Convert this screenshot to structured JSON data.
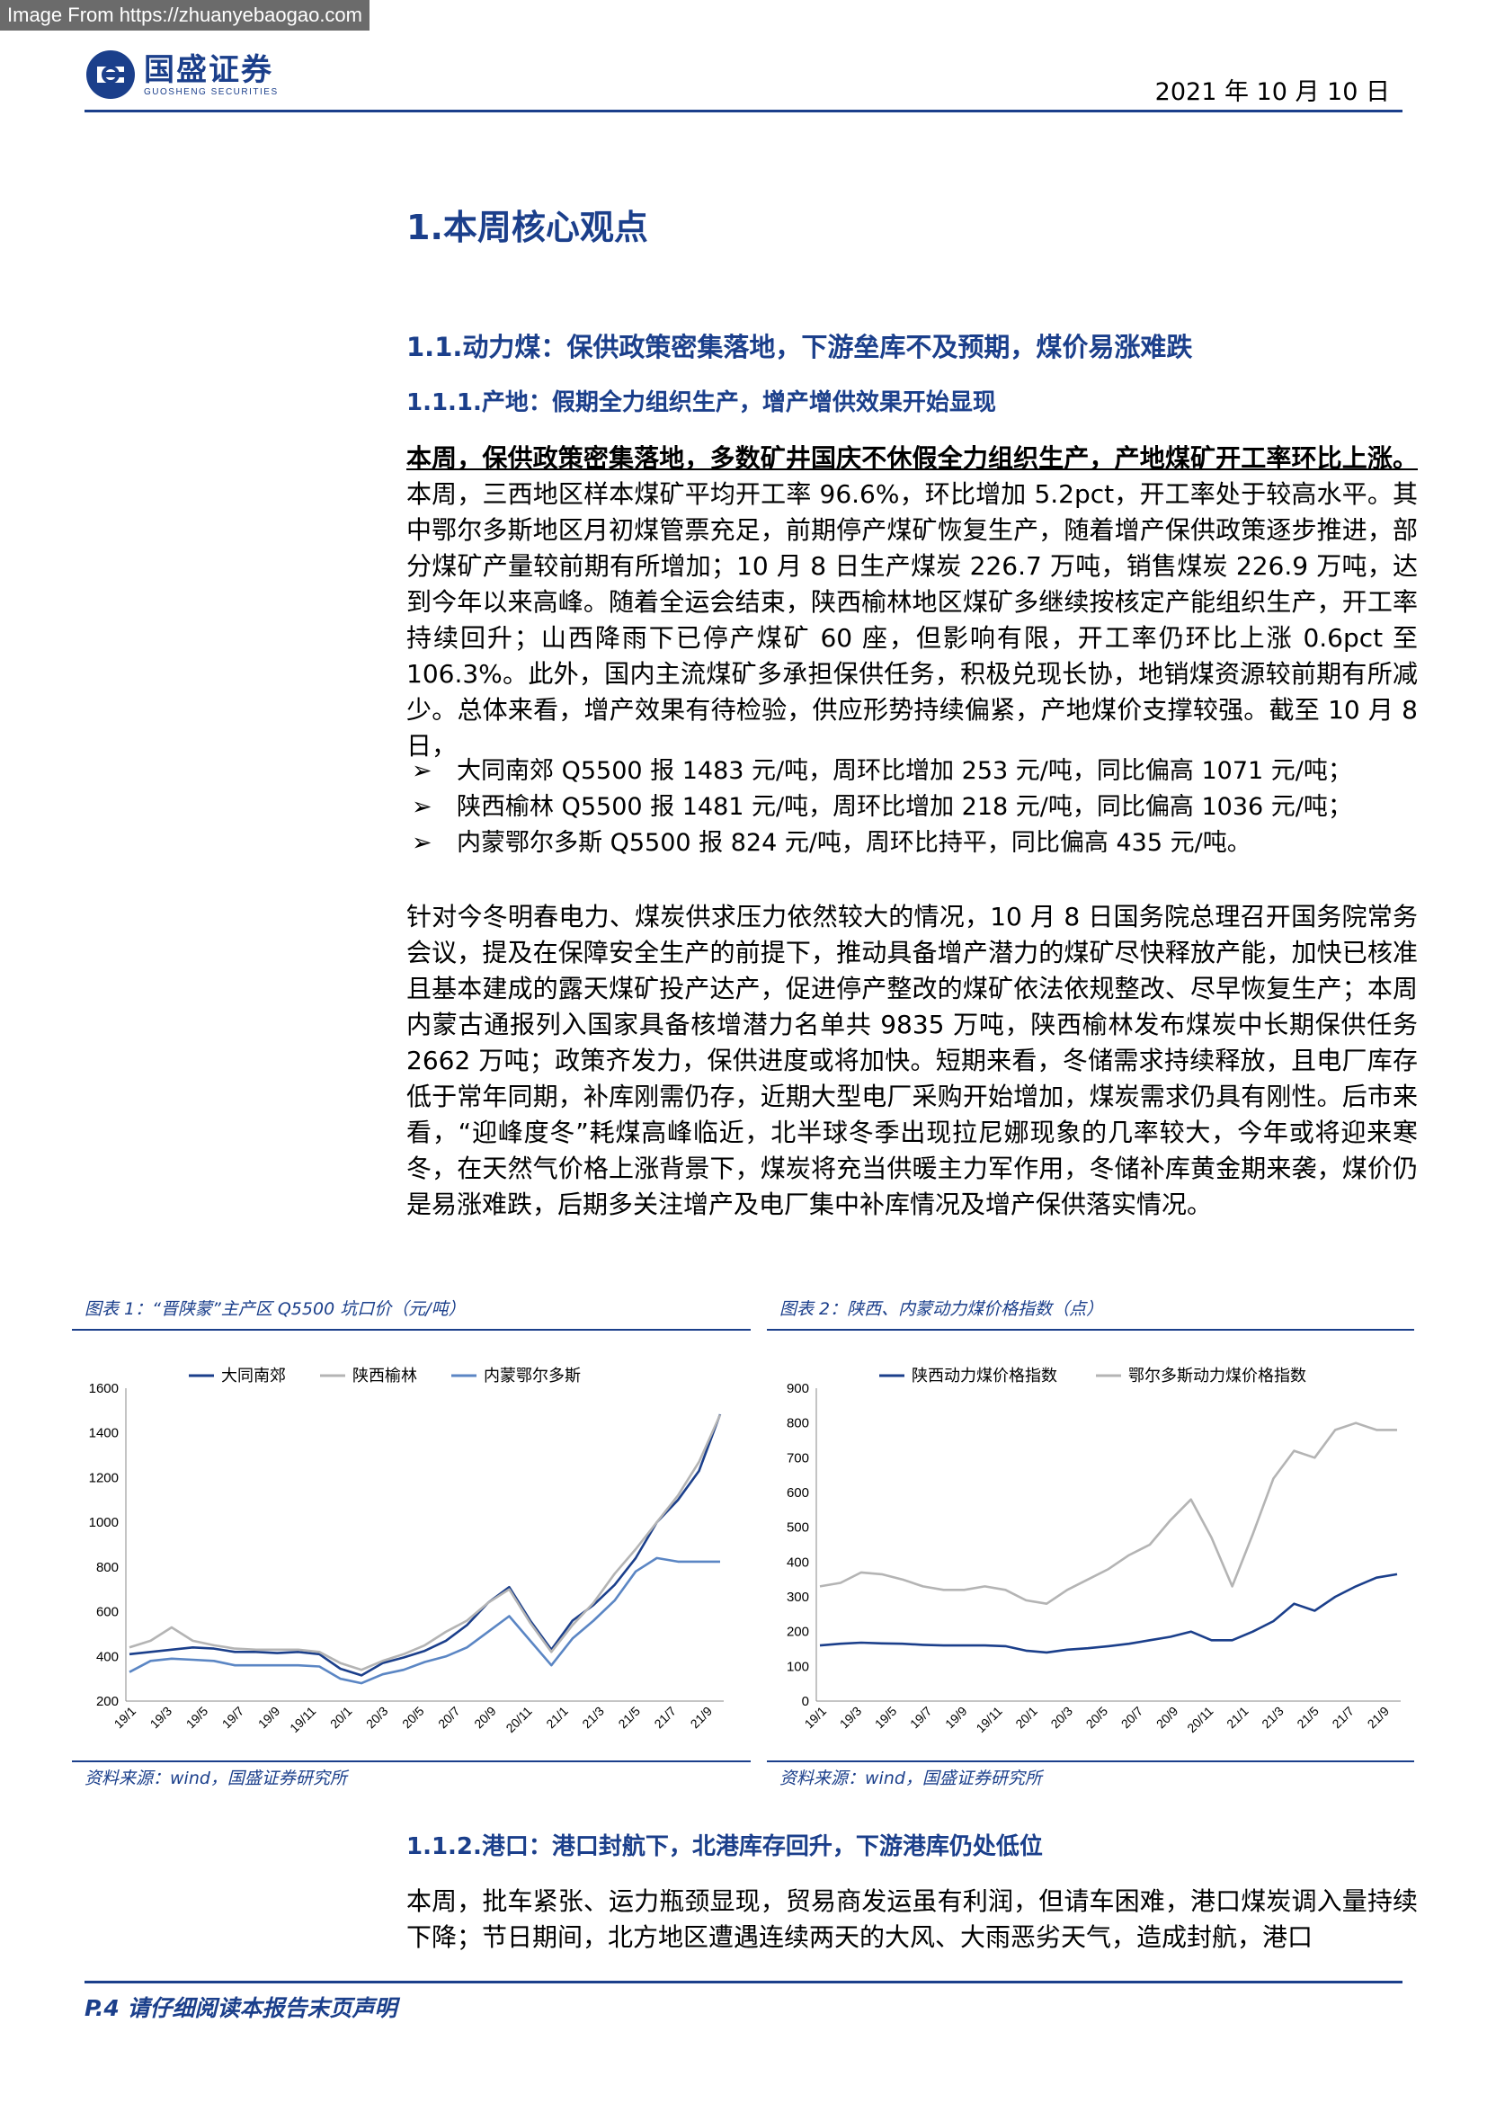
{
  "watermark": "Image From https://zhuanyebaogao.com",
  "header": {
    "logo_cn": "国盛证券",
    "logo_en": "GUOSHENG SECURITIES",
    "date": "2021 年 10 月 10 日"
  },
  "section": {
    "h1": "1.本周核心观点",
    "h2": "1.1.动力煤：保供政策密集落地，下游垒库不及预期，煤价易涨难跌",
    "h3_1": "1.1.1.产地：假期全力组织生产，增产增供效果开始显现",
    "h3_2": "1.1.2.港口：港口封航下，北港库存回升，下游港库仍处低位"
  },
  "paragraph1": {
    "bold": "本周，保供政策密集落地，多数矿井国庆不休假全力组织生产，产地煤矿开工率环比上涨。",
    "rest": "本周，三西地区样本煤矿平均开工率 96.6%，环比增加 5.2pct，开工率处于较高水平。其中鄂尔多斯地区月初煤管票充足，前期停产煤矿恢复生产，随着增产保供政策逐步推进，部分煤矿产量较前期有所增加；10 月 8 日生产煤炭 226.7 万吨，销售煤炭 226.9 万吨，达到今年以来高峰。随着全运会结束，陕西榆林地区煤矿多继续按核定产能组织生产，开工率持续回升；山西降雨下已停产煤矿 60 座，但影响有限，开工率仍环比上涨 0.6pct 至 106.3%。此外，国内主流煤矿多承担保供任务，积极兑现长协，地销煤资源较前期有所减少。总体来看，增产效果有待检验，供应形势持续偏紧，产地煤价支撑较强。截至 10 月 8 日，"
  },
  "bullets": [
    {
      "mark": "➢",
      "text": "大同南郊 Q5500 报 1483 元/吨，周环比增加 253 元/吨，同比偏高 1071 元/吨；"
    },
    {
      "mark": "➢",
      "text": "陕西榆林 Q5500 报 1481 元/吨，周环比增加 218 元/吨，同比偏高 1036 元/吨；"
    },
    {
      "mark": "➢",
      "text": "内蒙鄂尔多斯 Q5500 报 824 元/吨，周环比持平，同比偏高 435 元/吨。"
    }
  ],
  "paragraph2": "针对今冬明春电力、煤炭供求压力依然较大的情况，10 月 8 日国务院总理召开国务院常务会议，提及在保障安全生产的前提下，推动具备增产潜力的煤矿尽快释放产能，加快已核准且基本建成的露天煤矿投产达产，促进停产整改的煤矿依法依规整改、尽早恢复生产；本周内蒙古通报列入国家具备核增潜力名单共 9835 万吨，陕西榆林发布煤炭中长期保供任务 2662 万吨；政策齐发力，保供进度或将加快。短期来看，冬储需求持续释放，且电厂库存低于常年同期，补库刚需仍存，近期大型电厂采购开始增加，煤炭需求仍具有刚性。后市来看，“迎峰度冬”耗煤高峰临近，北半球冬季出现拉尼娜现象的几率较大，今年或将迎来寒冬，在天然气价格上涨背景下，煤炭将充当供暖主力军作用，冬储补库黄金期来袭，煤价仍是易涨难跌，后期多关注增产及电厂集中补库情况及增产保供落实情况。",
  "paragraph3": "本周，批车紧张、运力瓶颈显现，贸易商发运虽有利润，但请车困难，港口煤炭调入量持续下降；节日期间，北方地区遭遇连续两天的大风、大雨恶劣天气，造成封航，港口",
  "figures": {
    "fig1_title": "图表 1：“晋陕蒙”主产区 Q5500 坑口价（元/吨）",
    "fig2_title": "图表 2：陕西、内蒙动力煤价格指数（点）",
    "source": "资料来源：wind，国盛证券研究所"
  },
  "chart_data": [
    {
      "type": "line",
      "title": "",
      "xlabel": "",
      "ylabel": "",
      "ylim": [
        200,
        1600
      ],
      "yticks": [
        "200",
        "400",
        "600",
        "800",
        "1000",
        "1200",
        "1400",
        "1600"
      ],
      "x_ticks": [
        "19/1",
        "19/3",
        "19/5",
        "19/7",
        "19/9",
        "19/11",
        "20/1",
        "20/3",
        "20/5",
        "20/7",
        "20/9",
        "20/11",
        "21/1",
        "21/3",
        "21/5",
        "21/7",
        "21/9"
      ],
      "legend_position": "top",
      "colors": {
        "大同南郊": "#1b3f8b",
        "陕西榆林": "#b4b4b4",
        "内蒙鄂尔多斯": "#5b86c4"
      },
      "series": [
        {
          "name": "大同南郊",
          "values": [
            410,
            420,
            430,
            440,
            435,
            420,
            420,
            415,
            420,
            410,
            345,
            315,
            370,
            395,
            425,
            470,
            540,
            640,
            710,
            560,
            430,
            560,
            630,
            720,
            840,
            1000,
            1100,
            1230,
            1483
          ]
        },
        {
          "name": "陕西榆林",
          "values": [
            440,
            470,
            530,
            470,
            450,
            435,
            430,
            430,
            430,
            420,
            370,
            340,
            380,
            410,
            450,
            510,
            560,
            640,
            700,
            550,
            420,
            540,
            640,
            770,
            880,
            1000,
            1120,
            1270,
            1481
          ]
        },
        {
          "name": "内蒙鄂尔多斯",
          "values": [
            330,
            380,
            390,
            385,
            380,
            360,
            360,
            360,
            360,
            355,
            300,
            280,
            320,
            340,
            375,
            400,
            440,
            510,
            580,
            470,
            360,
            480,
            560,
            650,
            780,
            840,
            824,
            824,
            824
          ]
        }
      ]
    },
    {
      "type": "line",
      "title": "",
      "xlabel": "",
      "ylabel": "",
      "ylim": [
        0,
        900
      ],
      "yticks": [
        "0",
        "100",
        "200",
        "300",
        "400",
        "500",
        "600",
        "700",
        "800",
        "900"
      ],
      "x_ticks": [
        "19/1",
        "19/3",
        "19/5",
        "19/7",
        "19/9",
        "19/11",
        "20/1",
        "20/3",
        "20/5",
        "20/7",
        "20/9",
        "20/11",
        "21/1",
        "21/3",
        "21/5",
        "21/7",
        "21/9"
      ],
      "legend_position": "top",
      "colors": {
        "陕西动力煤价格指数": "#1b3f8b",
        "鄂尔多斯动力煤价格指数": "#b4b4b4"
      },
      "series": [
        {
          "name": "陕西动力煤价格指数",
          "values": [
            160,
            165,
            168,
            166,
            165,
            162,
            160,
            160,
            160,
            158,
            145,
            140,
            148,
            152,
            158,
            165,
            175,
            185,
            200,
            175,
            175,
            200,
            230,
            280,
            260,
            300,
            330,
            355,
            365
          ]
        },
        {
          "name": "鄂尔多斯动力煤价格指数",
          "values": [
            330,
            340,
            370,
            365,
            350,
            330,
            320,
            320,
            330,
            320,
            290,
            280,
            320,
            350,
            380,
            420,
            450,
            520,
            580,
            470,
            330,
            480,
            640,
            720,
            700,
            780,
            800,
            780,
            780
          ]
        }
      ]
    }
  ],
  "footer": "P.4 请仔细阅读本报告末页声明"
}
